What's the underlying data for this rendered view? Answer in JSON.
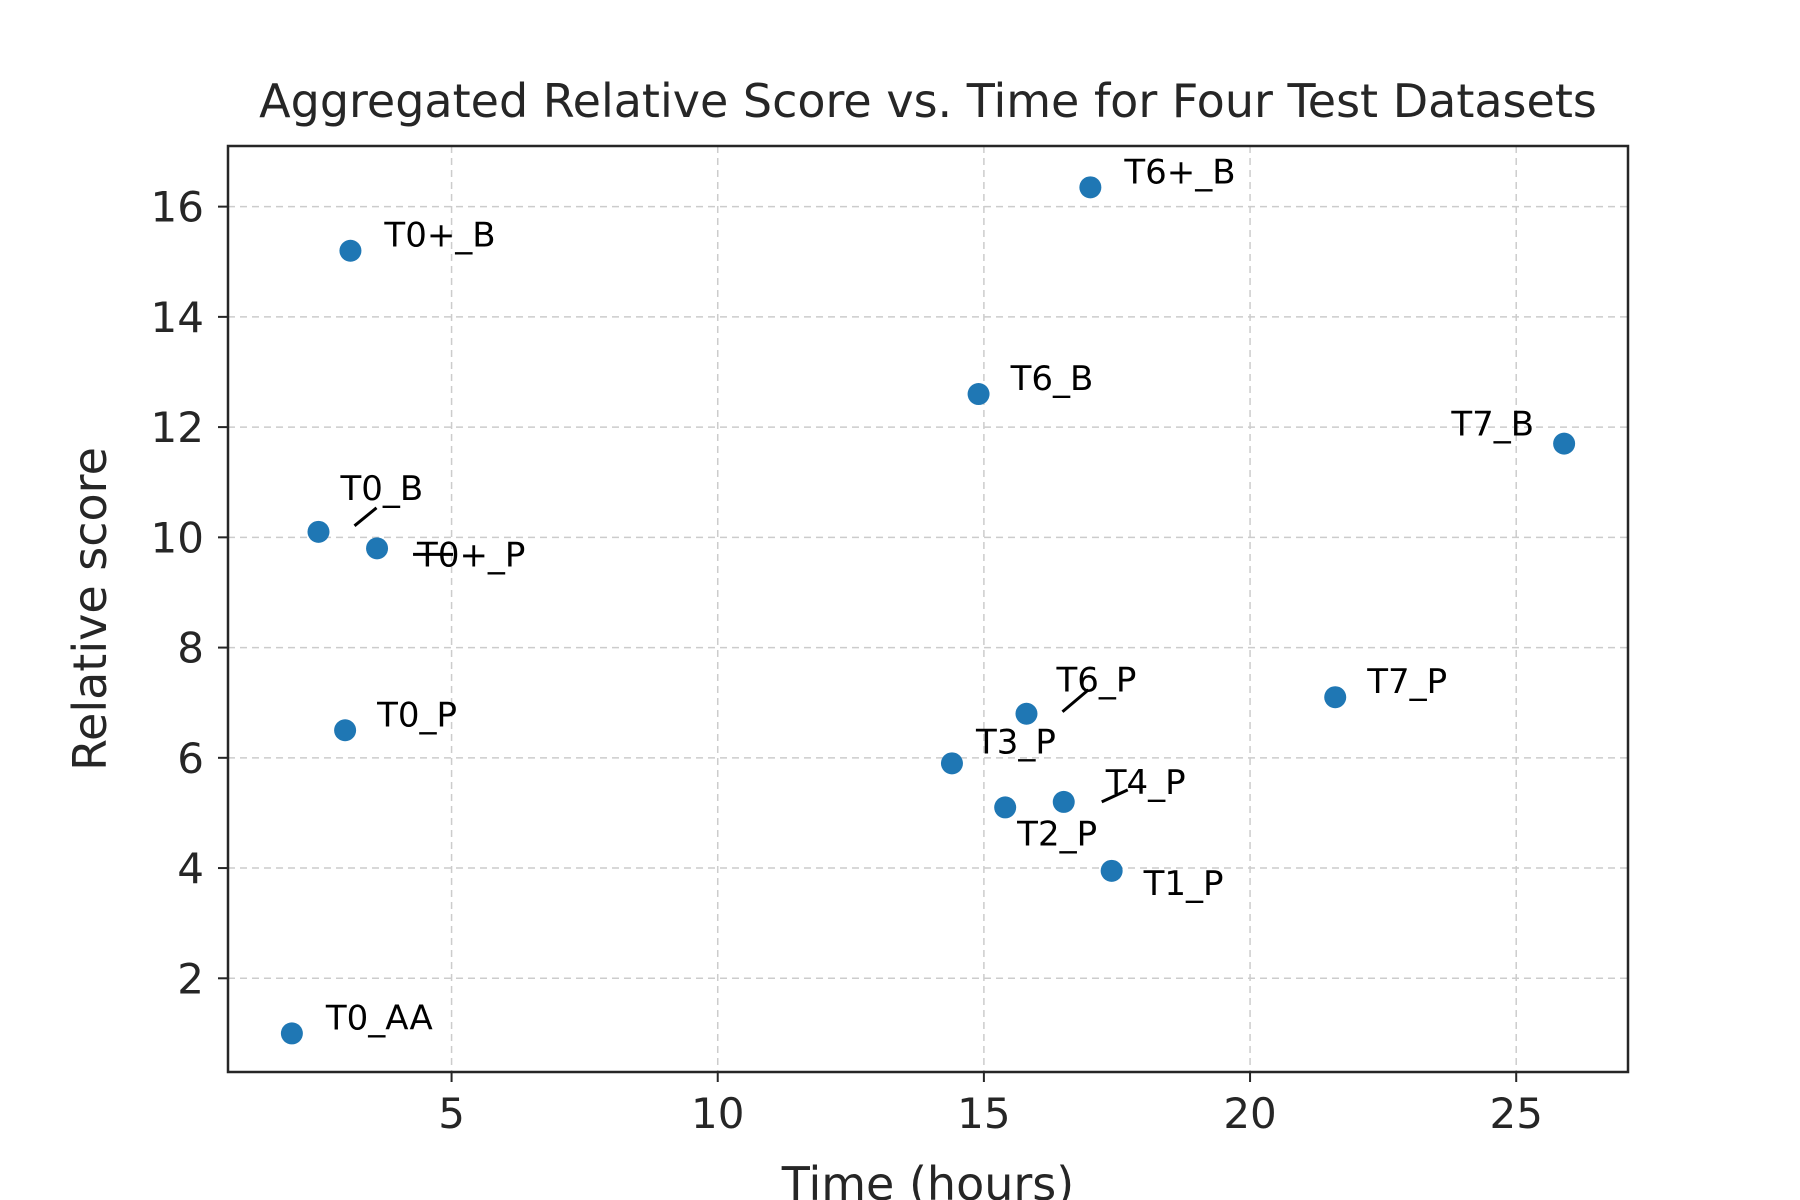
{
  "chart_data": {
    "type": "scatter",
    "title": "Aggregated Relative Score vs. Time for Four Test Datasets",
    "xlabel": "Time (hours)",
    "ylabel": "Relative score",
    "xlim": [
      0.8,
      27.1
    ],
    "ylim": [
      0.3,
      17.1
    ],
    "xticks": [
      5,
      10,
      15,
      20,
      25
    ],
    "yticks": [
      2,
      4,
      6,
      8,
      10,
      12,
      14,
      16
    ],
    "grid": true,
    "marker_color": "#1f77b4",
    "points": [
      {
        "label": "T0_AA",
        "x": 2.0,
        "y": 1.0
      },
      {
        "label": "T0_B",
        "x": 2.5,
        "y": 10.1
      },
      {
        "label": "T0_P",
        "x": 3.0,
        "y": 6.5
      },
      {
        "label": "T0+_B",
        "x": 3.1,
        "y": 15.2
      },
      {
        "label": "T0+_P",
        "x": 3.6,
        "y": 9.8
      },
      {
        "label": "T3_P",
        "x": 14.4,
        "y": 5.9
      },
      {
        "label": "T6_B",
        "x": 14.9,
        "y": 12.6
      },
      {
        "label": "T2_P",
        "x": 15.4,
        "y": 5.1
      },
      {
        "label": "T6_P",
        "x": 15.8,
        "y": 6.8
      },
      {
        "label": "T4_P",
        "x": 16.5,
        "y": 5.2
      },
      {
        "label": "T6+_B",
        "x": 17.0,
        "y": 16.35
      },
      {
        "label": "T1_P",
        "x": 17.4,
        "y": 3.95
      },
      {
        "label": "T7_P",
        "x": 21.6,
        "y": 7.1
      },
      {
        "label": "T7_B",
        "x": 25.9,
        "y": 11.7
      }
    ]
  }
}
